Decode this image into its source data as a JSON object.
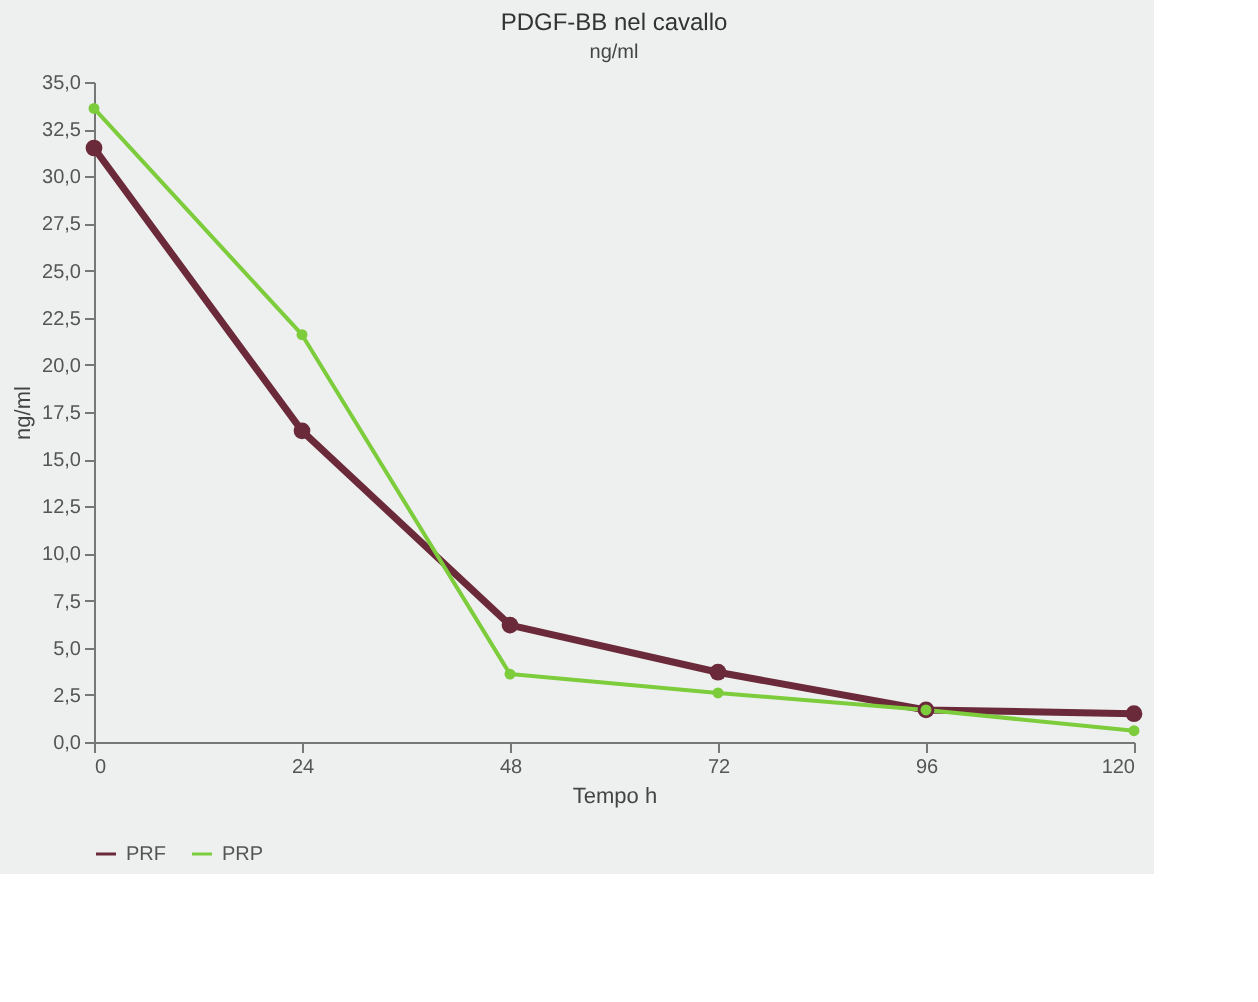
{
  "chart_data": {
    "type": "line",
    "title": "PDGF-BB nel cavallo",
    "subtitle": "ng/ml",
    "xlabel": "Tempo h",
    "ylabel": "ng/ml",
    "x": [
      0,
      24,
      48,
      72,
      96,
      120
    ],
    "series": [
      {
        "name": "PRF",
        "color": "#6b2a3a",
        "values": [
          31.5,
          16.5,
          6.2,
          3.7,
          1.7,
          1.5
        ]
      },
      {
        "name": "PRP",
        "color": "#7ccc3c",
        "values": [
          33.6,
          21.6,
          3.6,
          2.6,
          1.7,
          0.6
        ]
      }
    ],
    "xlim": [
      0,
      120
    ],
    "xticks": [
      0,
      24,
      48,
      72,
      96,
      120
    ],
    "ylim": [
      0,
      35
    ],
    "yticks": [
      {
        "value": 0,
        "label": "0,0"
      },
      {
        "value": 2.5,
        "label": "2,5"
      },
      {
        "value": 5,
        "label": "5,0"
      },
      {
        "value": 7.5,
        "label": "7,5"
      },
      {
        "value": 10,
        "label": "10,0"
      },
      {
        "value": 12.5,
        "label": "12,5"
      },
      {
        "value": 15,
        "label": "15,0"
      },
      {
        "value": 17.5,
        "label": "17,5"
      },
      {
        "value": 20,
        "label": "20,0"
      },
      {
        "value": 22.5,
        "label": "22,5"
      },
      {
        "value": 25,
        "label": "25,0"
      },
      {
        "value": 27.5,
        "label": "27,5"
      },
      {
        "value": 30,
        "label": "30,0"
      },
      {
        "value": 32.5,
        "label": "32,5"
      },
      {
        "value": 35,
        "label": "35,0"
      }
    ],
    "grid": false,
    "legend": "bottom",
    "marker": "circle",
    "line_style": "solid"
  }
}
